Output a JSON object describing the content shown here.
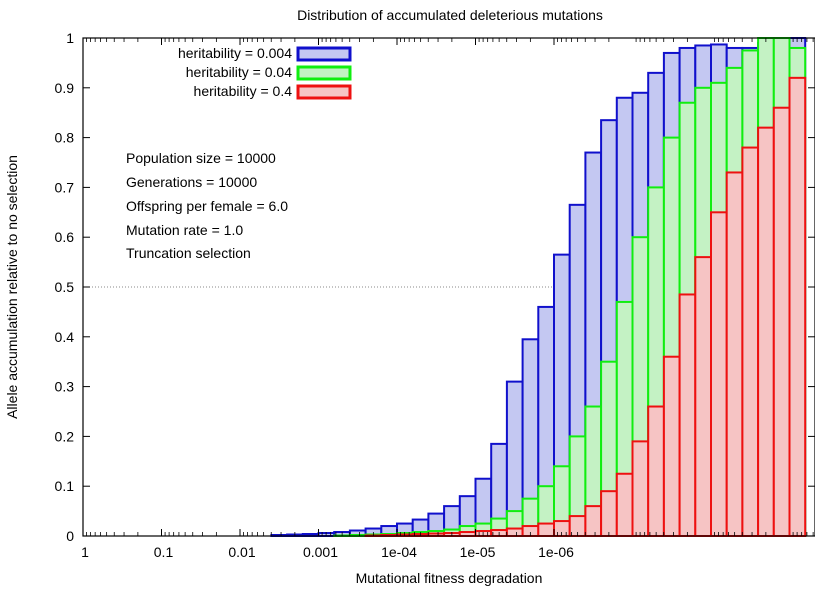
{
  "chart_data": {
    "type": "histogram",
    "title": "Distribution of accumulated deleterious mutations",
    "xlabel": "Mutational fitness degradation",
    "ylabel": "Allele accumulation relative to no selection",
    "x_scale": "log-reversed",
    "x_ticks": [
      "1",
      "0.1",
      "0.01",
      "0.001",
      "1e-04",
      "1e-05",
      "1e-06"
    ],
    "y_ticks": [
      "0",
      "0.1",
      "0.2",
      "0.3",
      "0.4",
      "0.5",
      "0.6",
      "0.7",
      "0.8",
      "0.9",
      "1"
    ],
    "ylim": [
      0,
      1
    ],
    "reference_line": 0.5,
    "legend_position": "top-left",
    "bins_per_decade": 5,
    "x_range": [
      1,
      1.3e-07
    ],
    "series": [
      {
        "name": "heritability = 0.004",
        "stroke": "#1010cc",
        "fill": "#c4c8f2",
        "values": [
          0,
          0,
          0,
          0,
          0,
          0,
          0,
          0,
          0,
          0,
          0,
          0,
          0.002,
          0.003,
          0.004,
          0.006,
          0.008,
          0.011,
          0.015,
          0.02,
          0.025,
          0.033,
          0.045,
          0.06,
          0.08,
          0.115,
          0.185,
          0.31,
          0.395,
          0.46,
          0.565,
          0.665,
          0.77,
          0.835,
          0.88,
          0.89,
          0.93,
          0.97,
          0.98,
          0.985,
          0.987,
          0.98,
          0.98,
          0.99,
          0.99,
          1.0
        ]
      },
      {
        "name": "heritability = 0.04",
        "stroke": "#10ee10",
        "fill": "#c4f2c4",
        "values": [
          0,
          0,
          0,
          0,
          0,
          0,
          0,
          0,
          0,
          0,
          0,
          0,
          0,
          0,
          0,
          0,
          0.001,
          0.002,
          0.003,
          0.004,
          0.006,
          0.008,
          0.01,
          0.013,
          0.02,
          0.025,
          0.035,
          0.05,
          0.075,
          0.1,
          0.14,
          0.2,
          0.26,
          0.35,
          0.47,
          0.6,
          0.7,
          0.8,
          0.87,
          0.9,
          0.91,
          0.94,
          0.975,
          1.0,
          1.0,
          0.98
        ]
      },
      {
        "name": "heritability = 0.4",
        "stroke": "#ee1010",
        "fill": "#f6c4c4",
        "values": [
          0,
          0,
          0,
          0,
          0,
          0,
          0,
          0,
          0,
          0,
          0,
          0,
          0,
          0,
          0,
          0,
          0,
          0,
          0.001,
          0.002,
          0.003,
          0.004,
          0.005,
          0.006,
          0.008,
          0.01,
          0.012,
          0.015,
          0.02,
          0.025,
          0.03,
          0.04,
          0.06,
          0.09,
          0.125,
          0.19,
          0.26,
          0.36,
          0.485,
          0.56,
          0.65,
          0.73,
          0.78,
          0.82,
          0.86,
          0.92
        ]
      }
    ],
    "annotations": [
      "Population size = 10000",
      "Generations = 10000",
      "Offspring per female = 6.0",
      "Mutation rate = 1.0",
      "Truncation selection"
    ]
  }
}
